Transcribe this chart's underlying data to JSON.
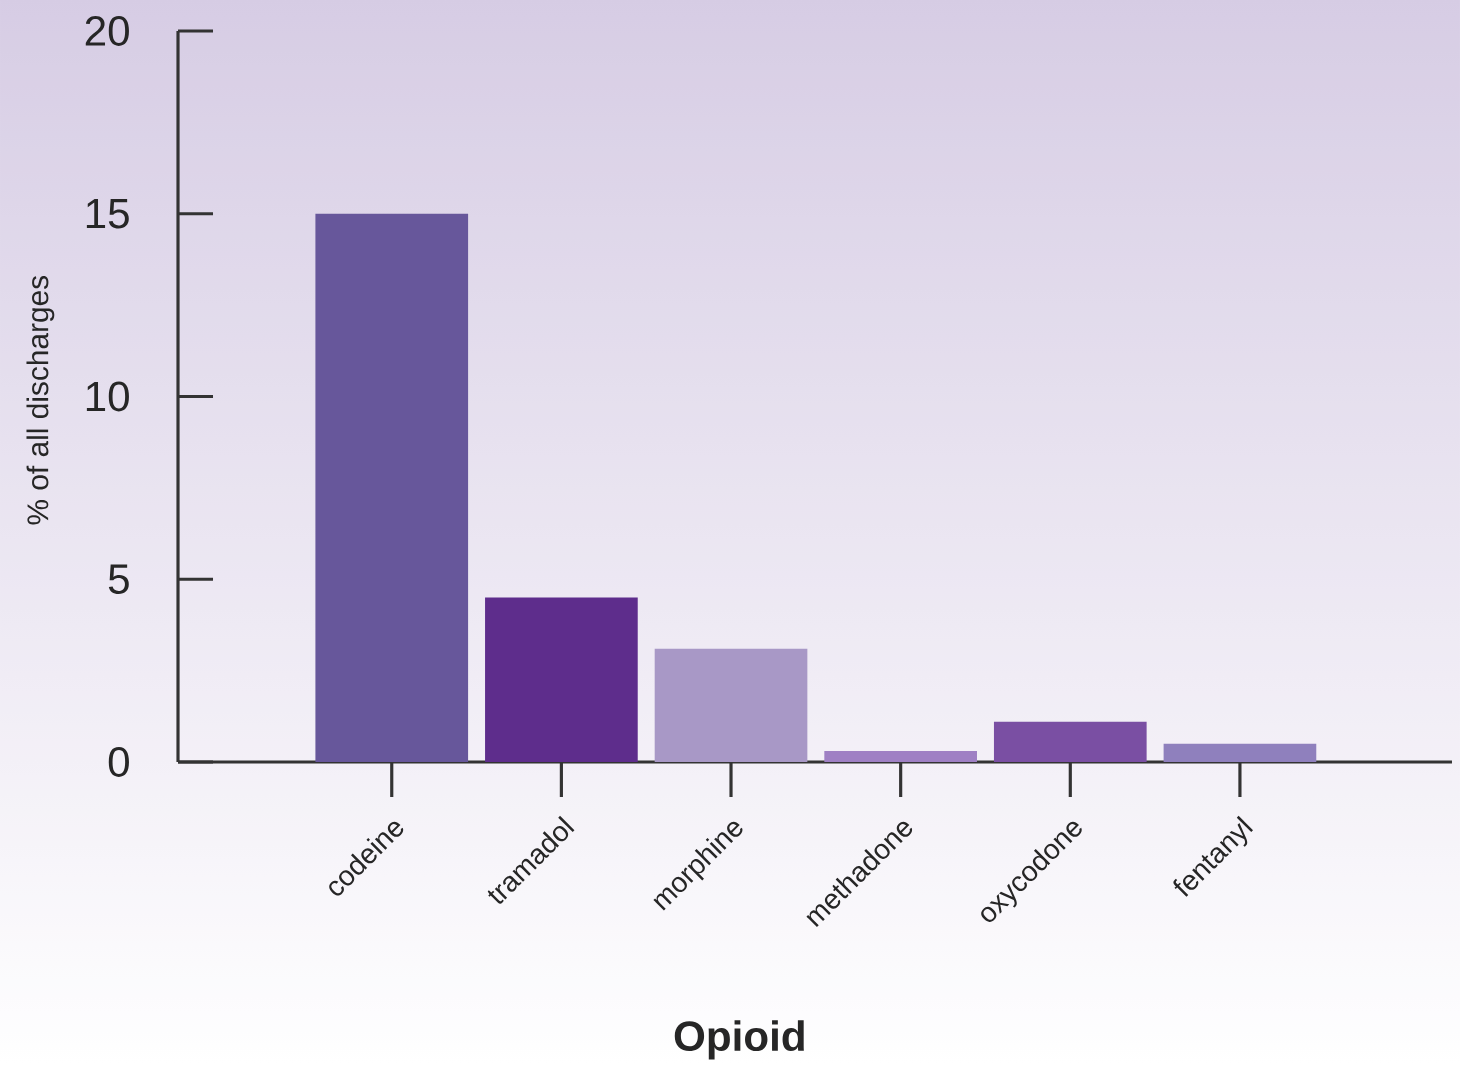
{
  "chart_data": {
    "type": "bar",
    "xlabel": "Opioid",
    "ylabel": "% of all discharges",
    "categories": [
      "codeine",
      "tramadol",
      "morphine",
      "methadone",
      "oxycodone",
      "fentanyl"
    ],
    "values": [
      15,
      4.5,
      3.1,
      0.3,
      1.1,
      0.5
    ],
    "colors": [
      "#67579b",
      "#5e2d8c",
      "#a898c6",
      "#9f80c4",
      "#7a4fa3",
      "#8f80bd"
    ],
    "ylim": [
      0,
      20
    ],
    "yticks": [
      0,
      5,
      10,
      15,
      20
    ]
  }
}
